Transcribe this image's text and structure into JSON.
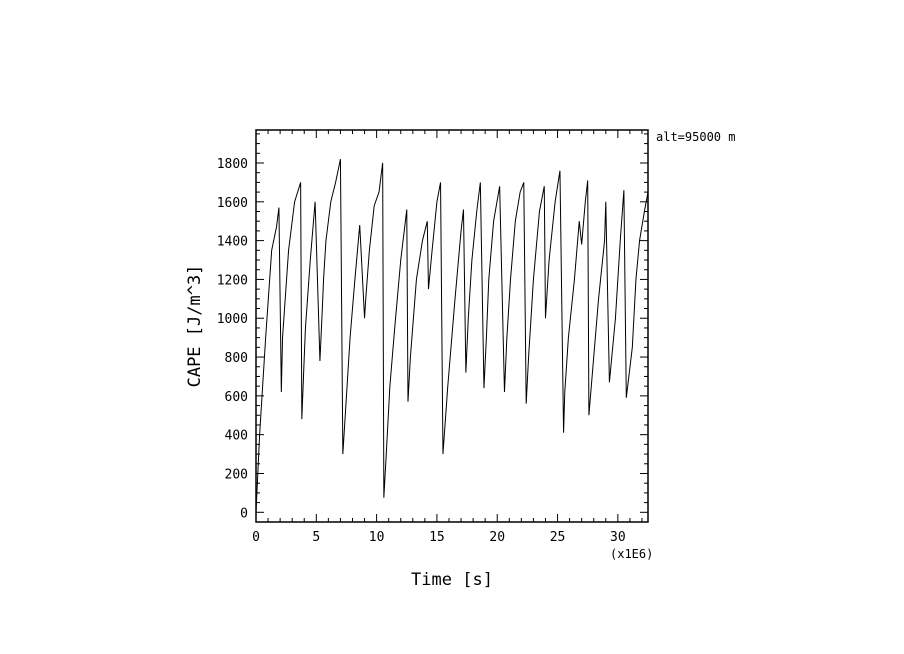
{
  "chart_data": {
    "type": "line",
    "xlabel": "Time [s]",
    "ylabel": "CAPE [J/m^3]",
    "x_multiplier": "(x1E6)",
    "annotation": "alt=95000  m",
    "xlim": [
      0,
      32.5
    ],
    "ylim": [
      -50,
      1970
    ],
    "x_ticks": [
      0,
      5,
      10,
      15,
      20,
      25,
      30
    ],
    "y_ticks": [
      0,
      200,
      400,
      600,
      800,
      1000,
      1200,
      1400,
      1600,
      1800
    ],
    "grid": false,
    "series": [
      {
        "x": [
          0.0,
          0.3,
          0.8,
          1.3,
          1.7,
          1.9,
          2.1,
          2.2,
          2.7,
          3.2,
          3.7,
          3.8,
          4.0,
          4.1,
          4.5,
          4.9,
          5.3,
          5.5,
          5.6,
          5.8,
          6.2,
          6.6,
          7.0,
          7.2,
          7.4,
          7.8,
          8.2,
          8.6,
          9.0,
          9.1,
          9.4,
          9.8,
          10.2,
          10.5,
          10.6,
          10.8,
          11.1,
          11.5,
          12.0,
          12.5,
          12.6,
          12.8,
          13.3,
          13.8,
          14.2,
          14.3,
          14.6,
          15.0,
          15.3,
          15.5,
          15.9,
          16.5,
          17.0,
          17.2,
          17.4,
          17.6,
          17.9,
          18.3,
          18.6,
          18.9,
          19.1,
          19.3,
          19.7,
          20.2,
          20.6,
          20.8,
          21.1,
          21.5,
          21.9,
          22.2,
          22.4,
          22.6,
          23.0,
          23.5,
          23.9,
          24.0,
          24.3,
          24.8,
          25.2,
          25.5,
          25.6,
          25.9,
          26.4,
          26.8,
          27.0,
          27.3,
          27.5,
          27.6,
          28.0,
          28.4,
          28.9,
          29.0,
          29.3,
          29.8,
          30.2,
          30.5,
          30.7,
          31.2,
          31.5,
          31.8,
          32.2,
          32.5
        ],
        "y": [
          0,
          400,
          900,
          1350,
          1470,
          1570,
          620,
          900,
          1350,
          1600,
          1700,
          480,
          800,
          950,
          1300,
          1600,
          780,
          1050,
          1200,
          1400,
          1600,
          1700,
          1820,
          300,
          500,
          900,
          1200,
          1480,
          1000,
          1100,
          1350,
          1580,
          1650,
          1800,
          75,
          300,
          650,
          950,
          1300,
          1560,
          570,
          800,
          1200,
          1400,
          1500,
          1150,
          1350,
          1600,
          1700,
          300,
          650,
          1100,
          1450,
          1560,
          720,
          1000,
          1300,
          1550,
          1700,
          640,
          900,
          1200,
          1500,
          1680,
          620,
          900,
          1200,
          1500,
          1650,
          1700,
          560,
          800,
          1200,
          1550,
          1680,
          1000,
          1300,
          1600,
          1760,
          410,
          620,
          900,
          1200,
          1500,
          1380,
          1600,
          1710,
          500,
          800,
          1100,
          1400,
          1600,
          670,
          1000,
          1400,
          1660,
          590,
          850,
          1200,
          1400,
          1550,
          1650
        ]
      }
    ]
  }
}
